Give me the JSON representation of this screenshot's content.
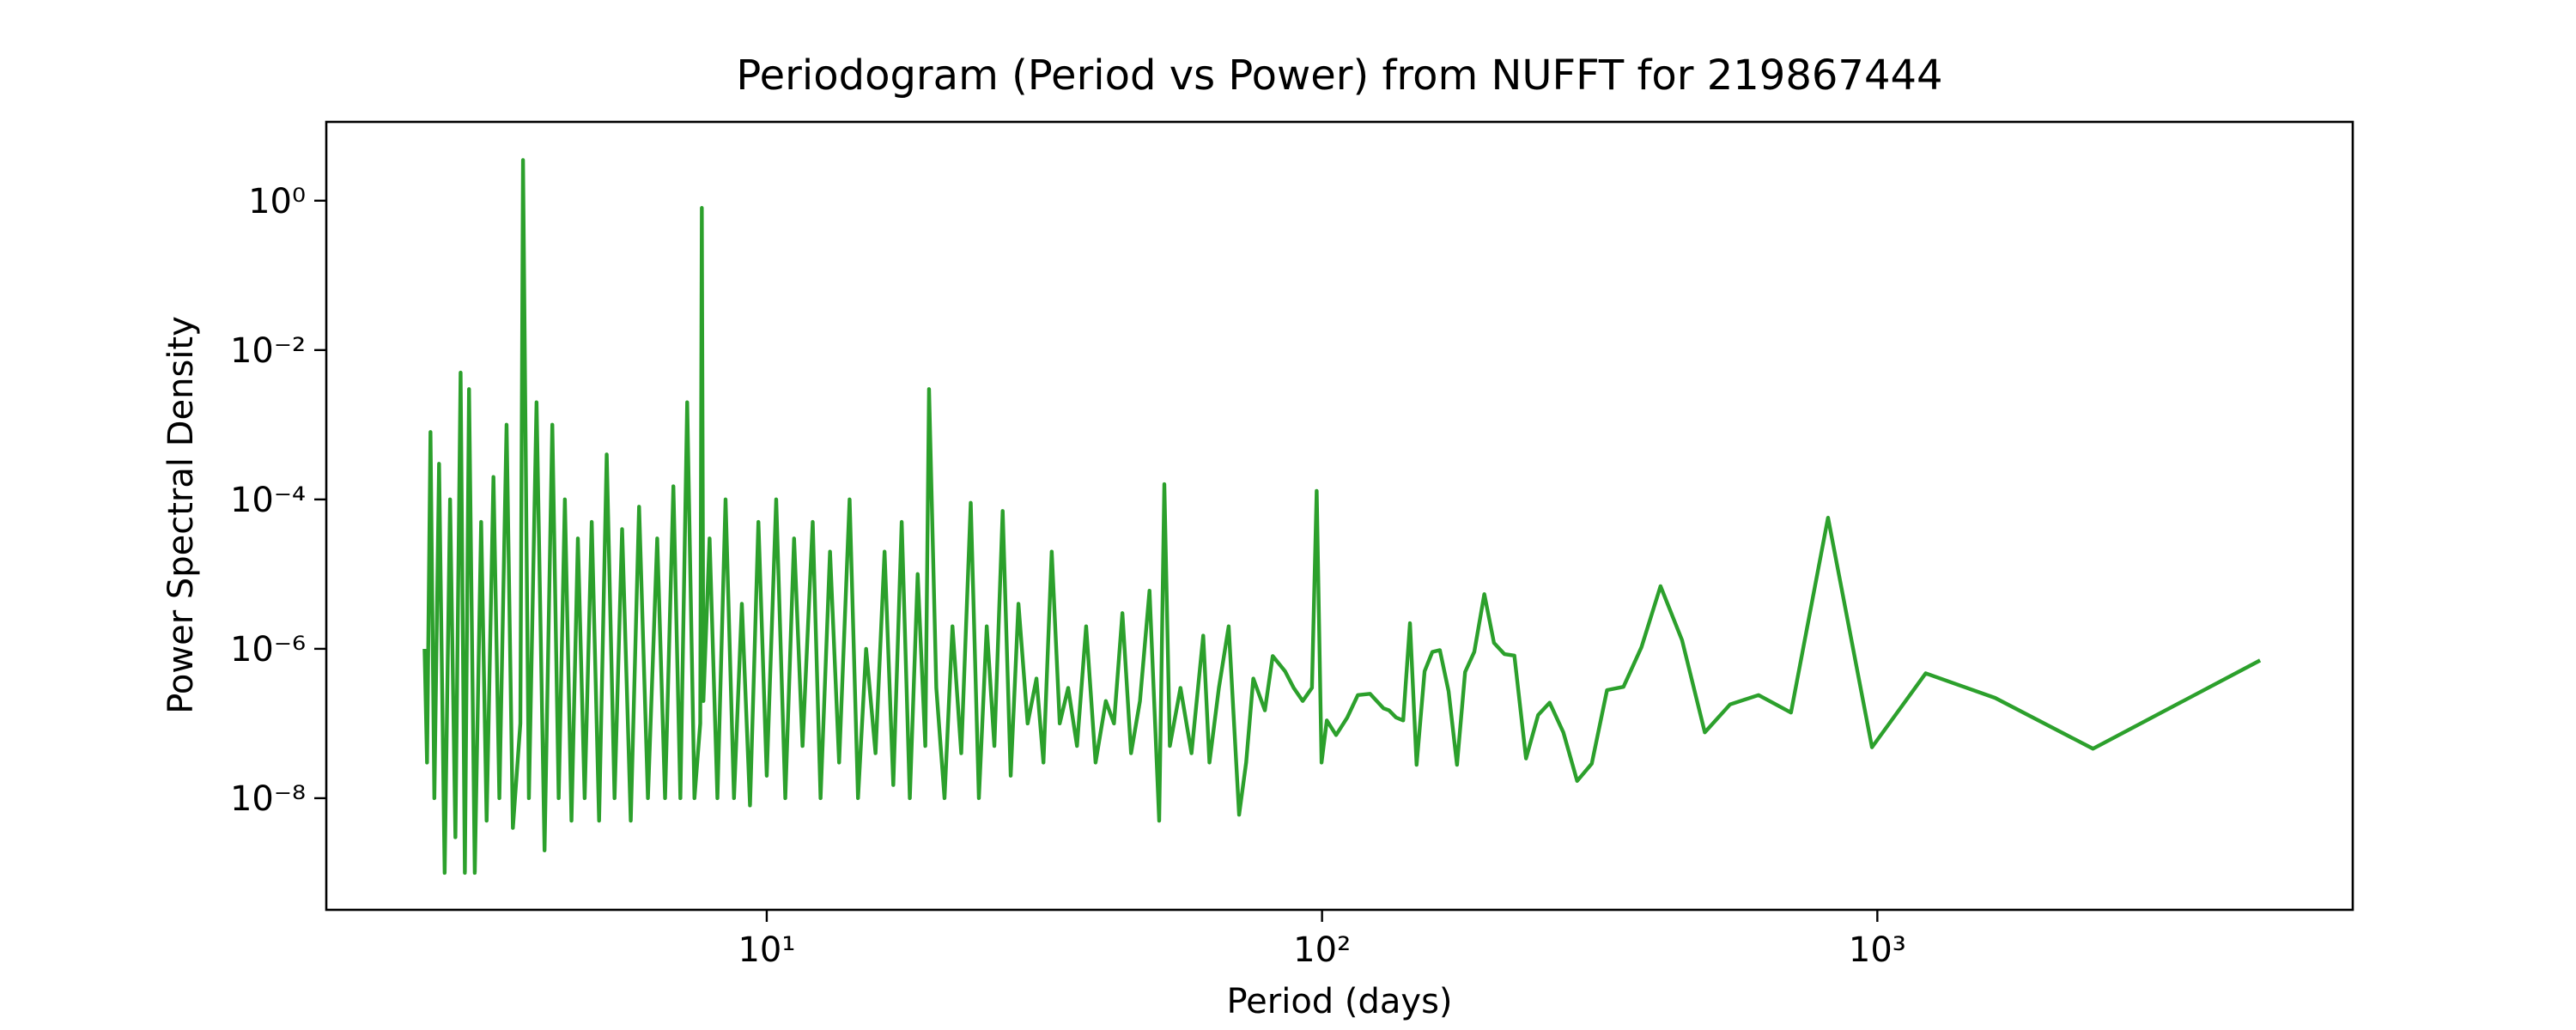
{
  "chart_data": {
    "type": "line",
    "title": "Periodogram (Period vs Power) from NUFFT for 219867444",
    "x_label": "Period (days)",
    "y_label": "Power Spectral Density",
    "x_scale": "log",
    "y_scale": "log",
    "color": "#2ca02c",
    "xlim": [
      1.61,
      7180
    ],
    "ylim": [
      3.2e-10,
      11.35
    ],
    "xticks": [
      {
        "value": 10,
        "label": "10¹"
      },
      {
        "value": 100,
        "label": "10²"
      },
      {
        "value": 1000,
        "label": "10³"
      }
    ],
    "yticks": [
      {
        "value": 1,
        "label": "10⁰"
      },
      {
        "value": 0.01,
        "label": "10⁻²"
      },
      {
        "value": 0.0001,
        "label": "10⁻⁴"
      },
      {
        "value": 1e-06,
        "label": "10⁻⁶"
      },
      {
        "value": 1e-08,
        "label": "10⁻⁸"
      }
    ],
    "x": [
      4890,
      2445,
      1630,
      1222,
      978,
      815,
      699,
      611,
      543,
      489,
      445,
      407,
      376,
      349,
      326,
      306,
      288,
      272,
      257,
      245,
      233,
      222,
      213,
      204,
      196,
      188,
      181,
      175,
      169,
      163,
      158,
      153,
      148,
      144,
      140,
      136,
      132,
      129,
      122,
      116,
      111,
      106,
      102,
      99.8,
      97.8,
      95.9,
      92.3,
      88.9,
      85.8,
      81.5,
      78.9,
      75.2,
      73,
      70.9,
      67.9,
      65.2,
      62.7,
      61.1,
      58.2,
      55.6,
      53.2,
      52.0,
      50.9,
      48.9,
      47.0,
      45.3,
      43.7,
      42.2,
      40.8,
      39.1,
      37.6,
      36.2,
      34.9,
      33.7,
      32.6,
      31.5,
      30.6,
      29.5,
      28.4,
      27.5,
      26.6,
      25.7,
      24.9,
      24.1,
      23.3,
      22.4,
      21.6,
      20.9,
      20.2,
      19.6,
      19.3,
      18.7,
      18.1,
      17.5,
      16.9,
      16.3,
      15.7,
      15.1,
      14.6,
      14.1,
      13.5,
      13.0,
      12.5,
      12.1,
      11.6,
      11.2,
      10.8,
      10.4,
      10.0,
      9.66,
      9.33,
      9.02,
      8.73,
      8.43,
      8.15,
      7.89,
      7.69,
      7.64,
      7.59,
      7.41,
      7.19,
      6.99,
      6.79,
      6.56,
      6.35,
      6.11,
      5.89,
      5.69,
      5.49,
      5.32,
      5.15,
      4.99,
      4.84,
      4.7,
      4.57,
      4.45,
      4.33,
      4.22,
      4.11,
      3.98,
      3.85,
      3.73,
      3.64,
      3.6,
      3.49,
      3.4,
      3.3,
      3.22,
      3.13,
      3.06,
      2.98,
      2.91,
      2.86,
      2.81,
      2.75,
      2.69,
      2.63,
      2.57,
      2.52,
      2.48,
      2.445,
      2.42
    ],
    "values": [
      7e-07,
      4.6e-08,
      2.2e-07,
      4.7e-07,
      4.8e-08,
      5.7e-05,
      1.4e-07,
      2.4e-07,
      1.8e-07,
      7.6e-08,
      1.3e-06,
      6.9e-06,
      1.05e-06,
      3.1e-07,
      2.8e-07,
      2.9e-08,
      1.7e-08,
      7.6e-08,
      1.9e-07,
      1.3e-07,
      3.4e-08,
      8.1e-07,
      8.5e-07,
      1.2e-06,
      5.4e-06,
      9.1e-07,
      4.9e-07,
      2.8e-08,
      2.7e-07,
      9.6e-07,
      9.1e-07,
      5e-07,
      2.8e-08,
      2.2e-06,
      1.1e-07,
      1.2e-07,
      1.5e-07,
      1.6e-07,
      2.5e-07,
      2.4e-07,
      1.2e-07,
      7e-08,
      1.1e-07,
      3e-08,
      0.00013,
      3e-07,
      2e-07,
      3e-07,
      5e-07,
      8e-07,
      1.5e-07,
      4e-07,
      3e-08,
      6e-09,
      2e-06,
      3e-07,
      3e-08,
      1.5e-06,
      4e-08,
      3e-07,
      5e-08,
      0.00016,
      5e-09,
      6e-06,
      2e-07,
      4e-08,
      3e-06,
      1e-07,
      2e-07,
      3e-08,
      2e-06,
      5e-08,
      3e-07,
      1e-07,
      2e-05,
      3e-08,
      4e-07,
      1e-07,
      4e-06,
      2e-08,
      7e-05,
      5e-08,
      2e-06,
      1e-08,
      9e-05,
      4e-08,
      2e-06,
      1e-08,
      3e-07,
      0.003,
      5e-08,
      1e-05,
      1e-08,
      5e-05,
      1.5e-08,
      2e-05,
      4e-08,
      1e-06,
      1e-08,
      0.0001,
      3e-08,
      2e-05,
      1e-08,
      5e-05,
      5e-08,
      3e-05,
      1e-08,
      0.0001,
      2e-08,
      5e-05,
      8e-09,
      4e-06,
      1e-08,
      0.0001,
      1e-08,
      3e-05,
      2e-07,
      0.8,
      1e-07,
      1e-08,
      0.002,
      1e-08,
      0.00015,
      1e-08,
      3e-05,
      1e-08,
      8e-05,
      5e-09,
      4e-05,
      1e-08,
      0.0004,
      5e-09,
      5e-05,
      1e-08,
      3e-05,
      5e-09,
      0.0001,
      1e-08,
      0.001,
      2e-09,
      0.002,
      1e-08,
      3.5,
      1e-07,
      4e-09,
      0.001,
      1e-08,
      0.0002,
      5e-09,
      5e-05,
      1e-09,
      0.003,
      1e-09,
      0.005,
      3e-09,
      0.0001,
      1e-09,
      0.0003,
      1e-08,
      0.0008,
      3e-08,
      1e-06
    ]
  }
}
